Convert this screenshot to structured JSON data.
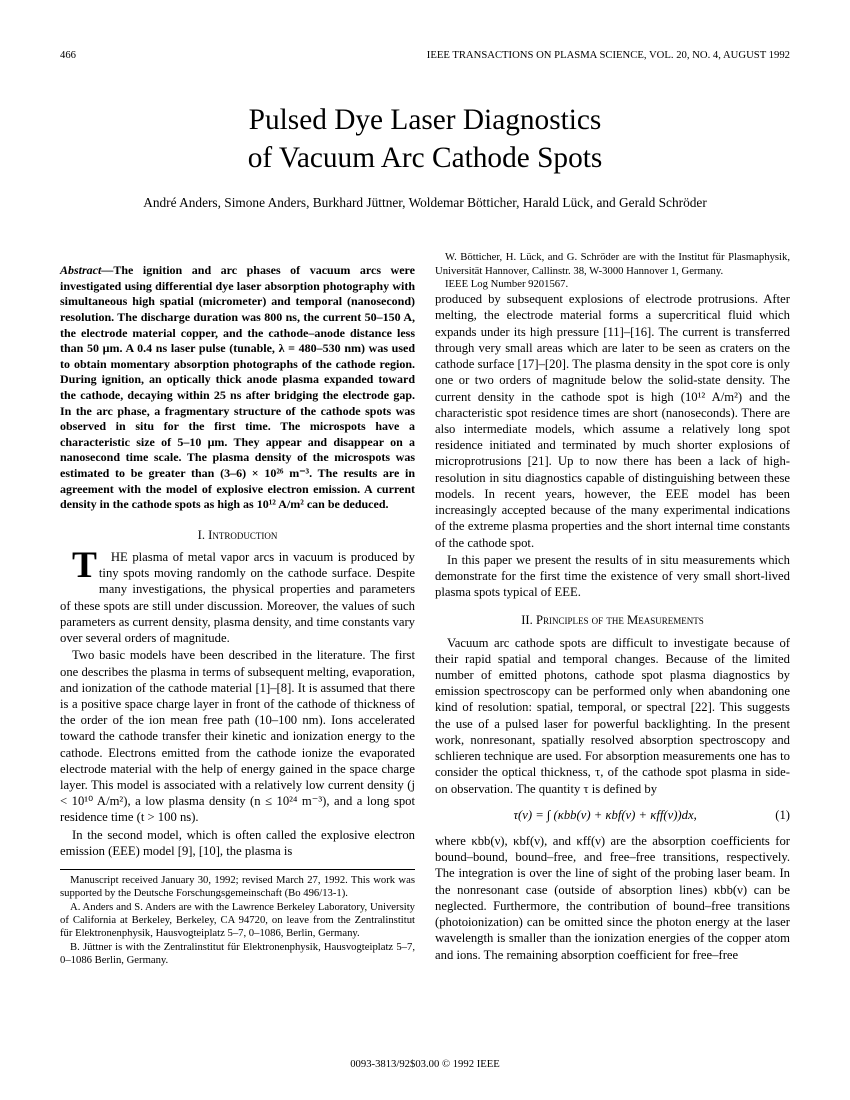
{
  "header": {
    "page_number": "466",
    "journal": "IEEE TRANSACTIONS ON PLASMA SCIENCE, VOL. 20, NO. 4, AUGUST 1992"
  },
  "title_line1": "Pulsed Dye Laser Diagnostics",
  "title_line2": "of Vacuum Arc Cathode Spots",
  "authors": "André Anders, Simone Anders, Burkhard Jüttner, Woldemar Bötticher, Harald Lück, and Gerald Schröder",
  "abstract_label": "Abstract—",
  "abstract": "The ignition and arc phases of vacuum arcs were investigated using differential dye laser absorption photography with simultaneous high spatial (micrometer) and temporal (nanosecond) resolution. The discharge duration was 800 ns, the current 50–150 A, the electrode material copper, and the cathode–anode distance less than 50 μm. A 0.4 ns laser pulse (tunable, λ = 480–530 nm) was used to obtain momentary absorption photographs of the cathode region. During ignition, an optically thick anode plasma expanded toward the cathode, decaying within 25 ns after bridging the electrode gap. In the arc phase, a fragmentary structure of the cathode spots was observed in situ for the first time. The microspots have a characteristic size of 5–10 μm. They appear and disappear on a nanosecond time scale. The plasma density of the microspots was estimated to be greater than (3–6) × 10²⁶ m⁻³. The results are in agreement with the model of explosive electron emission. A current density in the cathode spots as high as 10¹² A/m² can be deduced.",
  "section1_head": "I. Introduction",
  "intro_p1": "THE plasma of metal vapor arcs in vacuum is produced by tiny spots moving randomly on the cathode surface. Despite many investigations, the physical properties and parameters of these spots are still under discussion. Moreover, the values of such parameters as current density, plasma density, and time constants vary over several orders of magnitude.",
  "intro_p2": "Two basic models have been described in the literature. The first one describes the plasma in terms of subsequent melting, evaporation, and ionization of the cathode material [1]–[8]. It is assumed that there is a positive space charge layer in front of the cathode of thickness of the order of the ion mean free path (10–100 nm). Ions accelerated toward the cathode transfer their kinetic and ionization energy to the cathode. Electrons emitted from the cathode ionize the evaporated electrode material with the help of energy gained in the space charge layer. This model is associated with a relatively low current density (j < 10¹⁰ A/m²), a low plasma density (n ≤ 10²⁴ m⁻³), and a long spot residence time (t > 100 ns).",
  "intro_p3": "In the second model, which is often called the explosive electron emission (EEE) model [9], [10], the plasma is",
  "footnote_p1": "Manuscript received January 30, 1992; revised March 27, 1992. This work was supported by the Deutsche Forschungsgemeinschaft (Bo 496/13-1).",
  "footnote_p2": "A. Anders and S. Anders are with the Lawrence Berkeley Laboratory, University of California at Berkeley, Berkeley, CA 94720, on leave from the Zentralinstitut für Elektronenphysik, Hausvogteiplatz 5–7, 0–1086, Berlin, Germany.",
  "footnote_p3": "B. Jüttner is with the Zentralinstitut für Elektronenphysik, Hausvogteiplatz 5–7, 0–1086 Berlin, Germany.",
  "footnote_p4": "W. Bötticher, H. Lück, and G. Schröder are with the Institut für Plasmaphysik, Universität Hannover, Callinstr. 38, W-3000 Hannover 1, Germany.",
  "footnote_p5": "IEEE Log Number 9201567.",
  "col2_p1": "produced by subsequent explosions of electrode protrusions. After melting, the electrode material forms a supercritical fluid which expands under its high pressure [11]–[16]. The current is transferred through very small areas which are later to be seen as craters on the cathode surface [17]–[20]. The plasma density in the spot core is only one or two orders of magnitude below the solid-state density. The current density in the cathode spot is high (10¹² A/m²) and the characteristic spot residence times are short (nanoseconds). There are also intermediate models, which assume a relatively long spot residence initiated and terminated by much shorter explosions of microprotrusions [21]. Up to now there has been a lack of high-resolution in situ diagnostics capable of distinguishing between these models. In recent years, however, the EEE model has been increasingly accepted because of the many experimental indications of the extreme plasma properties and the short internal time constants of the cathode spot.",
  "col2_p2": "In this paper we present the results of in situ measurements which demonstrate for the first time the existence of very small short-lived plasma spots typical of EEE.",
  "section2_head": "II. Principles of the Measurements",
  "col2_p3": "Vacuum arc cathode spots are difficult to investigate because of their rapid spatial and temporal changes. Because of the limited number of emitted photons, cathode spot plasma diagnostics by emission spectroscopy can be performed only when abandoning one kind of resolution: spatial, temporal, or spectral [22]. This suggests the use of a pulsed laser for powerful backlighting. In the present work, nonresonant, spatially resolved absorption spectroscopy and schlieren technique are used. For absorption measurements one has to consider the optical thickness, τ, of the cathode spot plasma in side-on observation. The quantity τ is defined by",
  "equation": "τ(ν) = ∫ (κbb(ν) + κbf(ν) + κff(ν))dx,",
  "eqnum": "(1)",
  "col2_p4": "where κbb(ν), κbf(ν), and κff(ν) are the absorption coefficients for bound–bound, bound–free, and free–free transitions, respectively. The integration is over the line of sight of the probing laser beam. In the nonresonant case (outside of absorption lines) κbb(ν) can be neglected. Furthermore, the contribution of bound–free transitions (photoionization) can be omitted since the photon energy at the laser wavelength is smaller than the ionization energies of the copper atom and ions. The remaining absorption coefficient for free–free",
  "footer": "0093-3813/92$03.00 © 1992 IEEE"
}
